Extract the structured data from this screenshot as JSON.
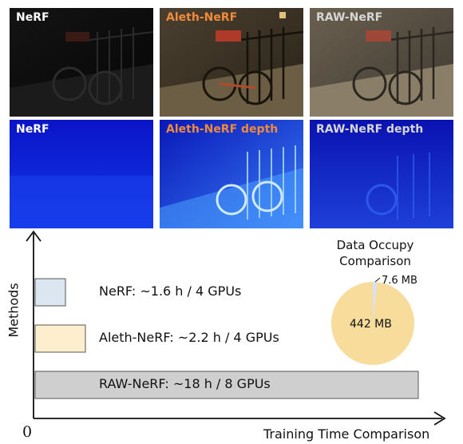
{
  "colors": {
    "nerf_label": "#ffffff",
    "aleth_label": "#f08a3c",
    "raw_label": "#d6d6d6",
    "nerf_bar": "#dce6f1",
    "aleth_bar": "#fdeecd",
    "raw_bar": "#cfcfcf",
    "pie_large": "#f8dc9c",
    "pie_small": "#d9e3ef"
  },
  "rgb_row": [
    {
      "label": "NeRF",
      "style": "dark"
    },
    {
      "label": "Aleth-NeRF",
      "style": "enhanced"
    },
    {
      "label": "RAW-NeRF",
      "style": "raw"
    }
  ],
  "depth_row": [
    {
      "label": "NeRF",
      "style": "depth-flat"
    },
    {
      "label": "Aleth-NeRF depth",
      "style": "depth-bright"
    },
    {
      "label": "RAW-NeRF depth",
      "style": "depth-mid"
    }
  ],
  "training_chart": {
    "y_axis_label": "Methods",
    "x_axis_label": "Training Time Comparison",
    "origin_label": "0",
    "bars": [
      {
        "text": "NeRF: ~1.6 h / 4 GPUs",
        "hours": 1.6
      },
      {
        "text": "Aleth-NeRF: ~2.2 h / 4 GPUs",
        "hours": 2.2
      },
      {
        "text": "RAW-NeRF: ~18 h / 8 GPUs",
        "hours": 18
      }
    ]
  },
  "pie": {
    "title_line1": "Data Occupy",
    "title_line2": "Comparison",
    "large_label": "442 MB",
    "small_label": "7.6 MB",
    "large_mb": 442,
    "small_mb": 7.6
  }
}
